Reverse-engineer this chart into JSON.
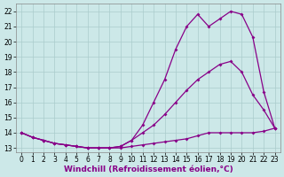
{
  "background_color": "#cce8e8",
  "grid_color": "#aacccc",
  "line_color": "#880088",
  "marker": "D",
  "markersize": 2,
  "linewidth": 0.9,
  "xlabel": "Windchill (Refroidissement éolien,°C)",
  "xlabel_fontsize": 6.5,
  "tick_fontsize": 5.5,
  "xlim": [
    -0.5,
    23.5
  ],
  "ylim": [
    12.7,
    22.5
  ],
  "yticks": [
    13,
    14,
    15,
    16,
    17,
    18,
    19,
    20,
    21,
    22
  ],
  "xticks": [
    0,
    1,
    2,
    3,
    4,
    5,
    6,
    7,
    8,
    9,
    10,
    11,
    12,
    13,
    14,
    15,
    16,
    17,
    18,
    19,
    20,
    21,
    22,
    23
  ],
  "series1_x": [
    0,
    1,
    2,
    3,
    4,
    5,
    6,
    7,
    8,
    9,
    10,
    11,
    12,
    13,
    14,
    15,
    16,
    17,
    18,
    19,
    20,
    21,
    22,
    23
  ],
  "series1_y": [
    14.0,
    13.7,
    13.5,
    13.3,
    13.2,
    13.1,
    13.0,
    13.0,
    13.0,
    13.0,
    13.1,
    13.2,
    13.3,
    13.4,
    13.5,
    13.6,
    13.8,
    14.0,
    14.0,
    14.0,
    14.0,
    14.0,
    14.1,
    14.3
  ],
  "series2_x": [
    0,
    1,
    2,
    3,
    4,
    5,
    6,
    7,
    8,
    9,
    10,
    11,
    12,
    13,
    14,
    15,
    16,
    17,
    18,
    19,
    20,
    21,
    22,
    23
  ],
  "series2_y": [
    14.0,
    13.7,
    13.5,
    13.3,
    13.2,
    13.1,
    13.0,
    13.0,
    13.0,
    13.1,
    13.5,
    14.0,
    14.5,
    15.2,
    16.0,
    16.8,
    17.5,
    18.0,
    18.5,
    18.7,
    18.0,
    16.5,
    15.5,
    14.3
  ],
  "series3_x": [
    0,
    1,
    2,
    3,
    4,
    5,
    6,
    7,
    8,
    9,
    10,
    11,
    12,
    13,
    14,
    15,
    16,
    17,
    18,
    19,
    20,
    21,
    22,
    23
  ],
  "series3_y": [
    14.0,
    13.7,
    13.5,
    13.3,
    13.2,
    13.1,
    13.0,
    13.0,
    13.0,
    13.1,
    13.5,
    14.5,
    16.0,
    17.5,
    19.5,
    21.0,
    21.8,
    21.0,
    21.5,
    22.0,
    21.8,
    20.3,
    16.7,
    14.3
  ]
}
